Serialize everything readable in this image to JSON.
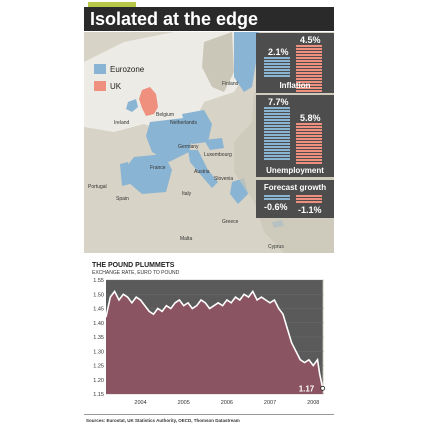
{
  "title": "Isolated at the edge",
  "legend": {
    "items": [
      {
        "label": "Eurozone",
        "color": "#8ab4d3"
      },
      {
        "label": "UK",
        "color": "#ef8f7e"
      }
    ]
  },
  "map_labels": [
    "Finland",
    "Ireland",
    "Belgium",
    "Netherlands",
    "Germany",
    "Luxembourg",
    "France",
    "Austria",
    "Slovenia",
    "Portugal",
    "Spain",
    "Italy",
    "Greece",
    "Malta",
    "Cyprus"
  ],
  "stats": {
    "inflation": {
      "label": "Inflation",
      "eurozone": "2.1%",
      "uk": "4.5%"
    },
    "unemployment": {
      "label": "Unemployment",
      "eurozone": "7.7%",
      "uk": "5.8%"
    },
    "forecast": {
      "label": "Forecast growth",
      "eurozone": "-0.6%",
      "uk": "-1.1%"
    }
  },
  "chart_data": {
    "type": "area",
    "title": "THE POUND PLUMMETS",
    "subtitle": "EXCHANGE RATE, EURO TO POUND",
    "x_ticks": [
      "2004",
      "2005",
      "2006",
      "2007",
      "2008"
    ],
    "y_ticks": [
      1.15,
      1.2,
      1.25,
      1.3,
      1.35,
      1.4,
      1.45,
      1.5,
      1.55
    ],
    "ylim": [
      1.15,
      1.55
    ],
    "xlim": [
      2003.7,
      2008.75
    ],
    "annotation": "1.17",
    "x": [
      2003.7,
      2003.8,
      2003.9,
      2004.0,
      2004.1,
      2004.2,
      2004.3,
      2004.4,
      2004.5,
      2004.6,
      2004.7,
      2004.8,
      2004.9,
      2005.0,
      2005.1,
      2005.2,
      2005.3,
      2005.4,
      2005.5,
      2005.6,
      2005.7,
      2005.8,
      2005.9,
      2006.0,
      2006.1,
      2006.2,
      2006.3,
      2006.4,
      2006.5,
      2006.6,
      2006.7,
      2006.8,
      2006.9,
      2007.0,
      2007.1,
      2007.2,
      2007.3,
      2007.4,
      2007.5,
      2007.6,
      2007.7,
      2007.8,
      2007.9,
      2008.0,
      2008.1,
      2008.2,
      2008.3,
      2008.4,
      2008.5,
      2008.6,
      2008.65,
      2008.72
    ],
    "values": [
      1.42,
      1.49,
      1.51,
      1.48,
      1.5,
      1.49,
      1.47,
      1.49,
      1.48,
      1.46,
      1.44,
      1.43,
      1.45,
      1.44,
      1.46,
      1.45,
      1.47,
      1.48,
      1.46,
      1.47,
      1.45,
      1.46,
      1.48,
      1.47,
      1.45,
      1.46,
      1.47,
      1.46,
      1.48,
      1.47,
      1.49,
      1.48,
      1.5,
      1.49,
      1.51,
      1.48,
      1.49,
      1.48,
      1.47,
      1.48,
      1.45,
      1.43,
      1.38,
      1.33,
      1.3,
      1.27,
      1.26,
      1.27,
      1.25,
      1.27,
      1.22,
      1.17
    ]
  },
  "source": "Sources: Eurostat, UK Statistics Authority, OECD, Thomson Datastream",
  "colors": {
    "eurozone": "#8ab4d3",
    "uk": "#ef8f7e",
    "area_fill": "#8a5462",
    "area_bg_after": "#e8e4d8",
    "chart_bg": "#5a5a5a",
    "stat_bg": "#4d4d4d"
  }
}
